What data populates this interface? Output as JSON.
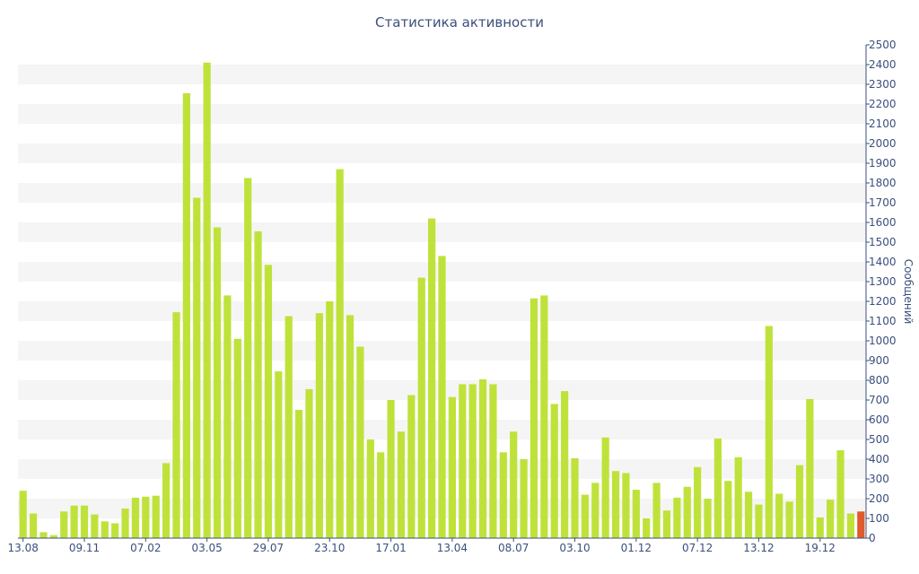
{
  "chart_data": {
    "type": "bar",
    "title": "Статистика активности",
    "ylabel": "Сообщений",
    "xlabel": "",
    "ylim": [
      0,
      2500
    ],
    "y_ticks": [
      0,
      100,
      200,
      300,
      400,
      500,
      600,
      700,
      800,
      900,
      1000,
      1100,
      1200,
      1300,
      1400,
      1500,
      1600,
      1700,
      1800,
      1900,
      2000,
      2100,
      2200,
      2300,
      2400,
      2500
    ],
    "x_tick_labels": [
      {
        "index": 0,
        "label": "13.08"
      },
      {
        "index": 6,
        "label": "09.11"
      },
      {
        "index": 12,
        "label": "07.02"
      },
      {
        "index": 18,
        "label": "03.05"
      },
      {
        "index": 24,
        "label": "29.07"
      },
      {
        "index": 30,
        "label": "23.10"
      },
      {
        "index": 36,
        "label": "17.01"
      },
      {
        "index": 42,
        "label": "13.04"
      },
      {
        "index": 48,
        "label": "08.07"
      },
      {
        "index": 54,
        "label": "03.10"
      },
      {
        "index": 60,
        "label": "01.12"
      },
      {
        "index": 66,
        "label": "07.12"
      },
      {
        "index": 72,
        "label": "13.12"
      },
      {
        "index": 78,
        "label": "19.12"
      }
    ],
    "values": [
      240,
      125,
      30,
      15,
      135,
      165,
      165,
      120,
      85,
      75,
      150,
      205,
      210,
      215,
      380,
      1145,
      2255,
      1725,
      2410,
      1575,
      1230,
      1010,
      1825,
      1555,
      1385,
      845,
      1125,
      650,
      755,
      1140,
      1200,
      1870,
      1130,
      970,
      500,
      435,
      700,
      540,
      725,
      1320,
      1620,
      1430,
      715,
      780,
      780,
      805,
      780,
      435,
      540,
      400,
      1215,
      1230,
      680,
      745,
      405,
      220,
      280,
      510,
      340,
      330,
      245,
      100,
      280,
      140,
      205,
      260,
      360,
      200,
      505,
      290,
      410,
      235,
      170,
      1075,
      225,
      185,
      370,
      705,
      105,
      195,
      445,
      125,
      135
    ],
    "highlight_index": 82,
    "colors": {
      "bar": "#bfe23a",
      "highlight": "#e05a2b",
      "band": "#f5f5f5",
      "text": "#3b4f7d",
      "axis": "#3b4f7d"
    },
    "grid": "alternating-bands",
    "y_axis_position": "right"
  }
}
